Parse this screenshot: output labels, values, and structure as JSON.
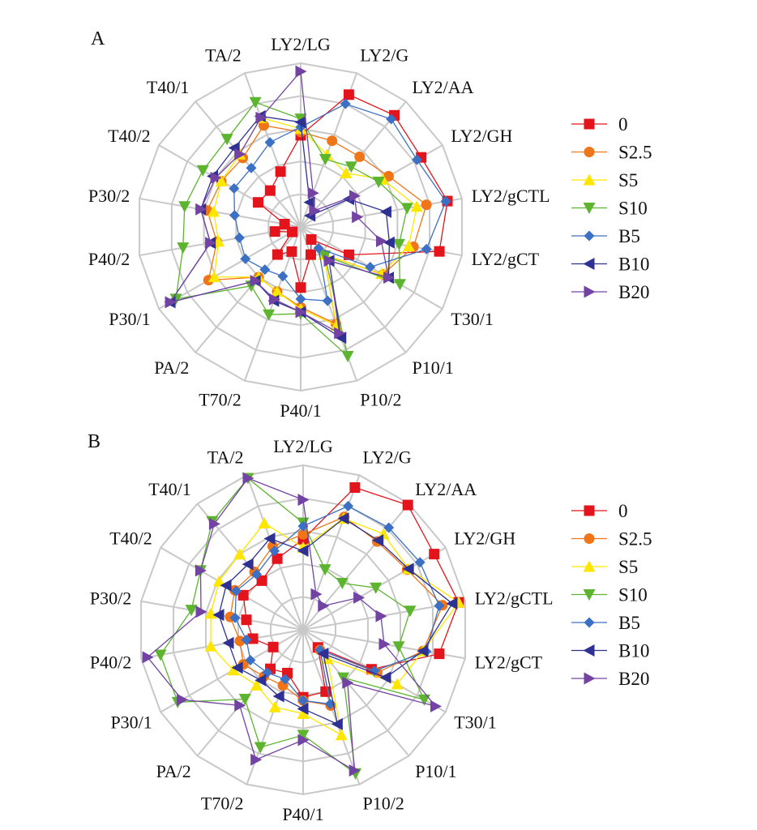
{
  "chart_data": [
    {
      "type": "radar",
      "panel_label": "A",
      "axes": [
        "LY2/LG",
        "LY2/G",
        "LY2/AA",
        "LY2/GH",
        "LY2/gCTL",
        "LY2/gCT",
        "T30/1",
        "P10/1",
        "P10/2",
        "P40/1",
        "T70/2",
        "PA/2",
        "P30/1",
        "P40/2",
        "P30/2",
        "T40/2",
        "T40/1",
        "TA/2"
      ],
      "range": [
        0,
        5
      ],
      "rings": 5,
      "grid": true,
      "legend_position": "right",
      "series": [
        {
          "name": "0",
          "color": "#e3141b",
          "marker": "square",
          "values": [
            2.8,
            4.3,
            4.45,
            4.25,
            4.55,
            4.3,
            1.7,
            0.5,
            0.9,
            1.85,
            0.8,
            1.1,
            0.3,
            0.8,
            0.5,
            1.5,
            1.45,
            1.8
          ]
        },
        {
          "name": "S2.5",
          "color": "#f07418",
          "marker": "circle",
          "values": [
            2.9,
            2.8,
            2.8,
            3.1,
            3.9,
            3.5,
            2.9,
            1.1,
            3.15,
            2.45,
            2.1,
            2.0,
            3.25,
            2.6,
            2.9,
            2.8,
            2.75,
            3.3
          ]
        },
        {
          "name": "S5",
          "color": "#ffe600",
          "marker": "triangle-up",
          "values": [
            3.0,
            2.35,
            2.15,
            2.9,
            3.6,
            3.35,
            2.85,
            1.1,
            3.2,
            2.5,
            2.1,
            2.0,
            3.05,
            2.55,
            2.7,
            2.8,
            2.9,
            3.55
          ]
        },
        {
          "name": "S10",
          "color": "#5db52f",
          "marker": "triangle-down",
          "values": [
            3.3,
            2.2,
            2.4,
            2.75,
            3.3,
            3.05,
            3.5,
            1.15,
            4.2,
            2.65,
            2.85,
            2.35,
            4.4,
            3.65,
            3.6,
            3.45,
            3.5,
            4.05
          ]
        },
        {
          "name": "B5",
          "color": "#3b70c4",
          "marker": "diamond",
          "values": [
            3.05,
            4.0,
            4.3,
            4.1,
            4.5,
            3.9,
            2.45,
            0.85,
            2.4,
            2.2,
            1.6,
            1.7,
            1.95,
            1.9,
            2.05,
            2.35,
            2.35,
            2.75
          ]
        },
        {
          "name": "B10",
          "color": "#2e3192",
          "marker": "triangle-left",
          "values": [
            3.2,
            0.8,
            0.45,
            1.7,
            2.65,
            2.75,
            3.1,
            1.35,
            3.6,
            2.6,
            2.4,
            2.15,
            4.6,
            2.8,
            3.1,
            3.1,
            3.15,
            3.6
          ]
        },
        {
          "name": "B20",
          "color": "#7343a3",
          "marker": "triangle-right",
          "values": [
            4.75,
            1.1,
            0.65,
            1.9,
            1.75,
            2.5,
            3.1,
            1.35,
            3.45,
            2.6,
            2.35,
            2.15,
            4.6,
            2.8,
            3.1,
            3.0,
            2.9,
            3.55
          ]
        }
      ]
    },
    {
      "type": "radar",
      "panel_label": "B",
      "axes": [
        "LY2/LG",
        "LY2/G",
        "LY2/AA",
        "LY2/GH",
        "LY2/gCTL",
        "LY2/gCT",
        "T30/1",
        "P10/1",
        "P10/2",
        "P40/1",
        "T70/2",
        "PA/2",
        "P30/1",
        "P40/2",
        "P30/2",
        "T40/2",
        "T40/1",
        "TA/2"
      ],
      "range": [
        0,
        5
      ],
      "rings": 5,
      "grid": true,
      "legend_position": "right",
      "series": [
        {
          "name": "0",
          "color": "#e3141b",
          "marker": "square",
          "values": [
            2.75,
            4.6,
            4.95,
            4.6,
            4.8,
            4.2,
            2.4,
            0.7,
            2.0,
            2.05,
            1.4,
            1.55,
            1.05,
            1.55,
            1.75,
            2.1,
            1.95,
            2.3
          ]
        },
        {
          "name": "S2.5",
          "color": "#f07418",
          "marker": "circle",
          "values": [
            2.9,
            3.65,
            3.5,
            3.65,
            4.3,
            3.7,
            2.6,
            0.8,
            2.45,
            2.15,
            1.8,
            1.85,
            2.1,
            1.95,
            2.25,
            2.4,
            2.3,
            2.7
          ]
        },
        {
          "name": "S5",
          "color": "#ffe600",
          "marker": "triangle-up",
          "values": [
            2.5,
            3.6,
            3.8,
            3.7,
            4.8,
            3.7,
            3.3,
            1.15,
            3.4,
            2.55,
            2.5,
            2.2,
            2.45,
            2.85,
            2.85,
            2.95,
            3.0,
            3.45
          ]
        },
        {
          "name": "S10",
          "color": "#5db52f",
          "marker": "triangle-down",
          "values": [
            3.25,
            1.95,
            1.85,
            2.55,
            3.3,
            2.95,
            4.25,
            1.9,
            4.65,
            3.2,
            3.8,
            2.75,
            4.4,
            4.4,
            3.45,
            3.6,
            4.3,
            4.9
          ]
        },
        {
          "name": "B5",
          "color": "#3b70c4",
          "marker": "diamond",
          "values": [
            3.15,
            4.0,
            4.05,
            4.1,
            4.2,
            3.8,
            2.5,
            0.8,
            2.4,
            2.15,
            1.6,
            1.7,
            1.85,
            1.75,
            2.1,
            2.35,
            2.2,
            2.55
          ]
        },
        {
          "name": "B10",
          "color": "#2e3192",
          "marker": "triangle-left",
          "values": [
            2.4,
            3.6,
            3.55,
            3.7,
            4.6,
            3.7,
            2.9,
            0.95,
            3.05,
            2.4,
            2.15,
            2.0,
            2.3,
            2.3,
            2.6,
            2.7,
            2.6,
            2.95
          ]
        },
        {
          "name": "B20",
          "color": "#7343a3",
          "marker": "triangle-right",
          "values": [
            3.95,
            1.15,
            0.95,
            1.95,
            2.4,
            2.5,
            4.65,
            2.1,
            4.55,
            3.35,
            4.2,
            3.0,
            4.25,
            4.8,
            3.15,
            3.6,
            4.2,
            4.9
          ]
        }
      ]
    }
  ]
}
